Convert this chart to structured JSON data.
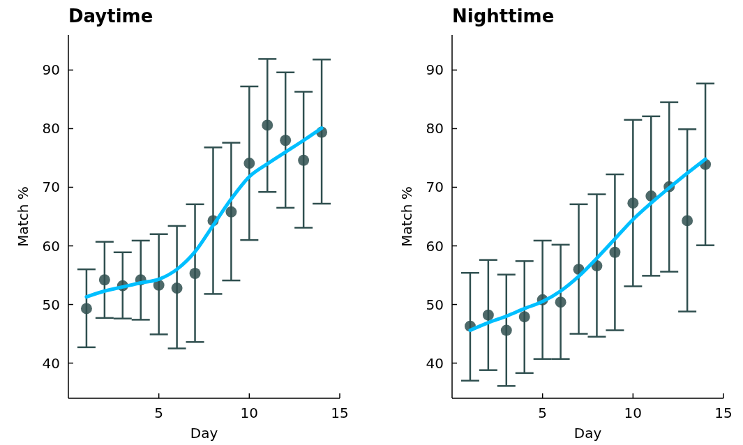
{
  "chart_data": [
    {
      "type": "scatter",
      "title": "Daytime",
      "xlabel": "Day",
      "ylabel": "Match %",
      "x": [
        1,
        2,
        3,
        4,
        5,
        6,
        7,
        8,
        9,
        10,
        11,
        12,
        13,
        14
      ],
      "xlim": [
        0,
        15
      ],
      "xticks": [
        5,
        10,
        15
      ],
      "ylim": [
        34,
        96
      ],
      "yticks": [
        40,
        50,
        60,
        70,
        80,
        90
      ],
      "grid": false,
      "series": [
        {
          "marker": "circle",
          "color": "#2f4f4f",
          "values": [
            49.3,
            54.2,
            53.2,
            54.2,
            53.3,
            52.8,
            55.3,
            64.3,
            65.8,
            74.1,
            80.6,
            78.0,
            74.6,
            79.4
          ],
          "errors": [
            [
              42.7,
              56.0
            ],
            [
              47.7,
              60.7
            ],
            [
              47.6,
              58.9
            ],
            [
              47.4,
              60.9
            ],
            [
              44.9,
              62.0
            ],
            [
              42.5,
              63.4
            ],
            [
              43.6,
              67.1
            ],
            [
              51.8,
              76.8
            ],
            [
              54.1,
              77.6
            ],
            [
              61.0,
              87.2
            ],
            [
              69.2,
              91.9
            ],
            [
              66.5,
              89.6
            ],
            [
              63.1,
              86.3
            ],
            [
              67.2,
              91.8
            ]
          ]
        },
        {
          "type": "line",
          "color": "#00bfff",
          "values": [
            51.3,
            52.3,
            53.0,
            53.7,
            54.3,
            56.0,
            59.0,
            63.5,
            68.0,
            71.8,
            74.0,
            76.0,
            78.0,
            80.1
          ]
        }
      ]
    },
    {
      "type": "scatter",
      "title": "Nighttime",
      "xlabel": "Day",
      "ylabel": "Match %",
      "x": [
        1,
        2,
        3,
        4,
        5,
        6,
        7,
        8,
        9,
        10,
        11,
        12,
        13,
        14
      ],
      "xlim": [
        0,
        15
      ],
      "xticks": [
        5,
        10,
        15
      ],
      "ylim": [
        34,
        96
      ],
      "yticks": [
        40,
        50,
        60,
        70,
        80,
        90
      ],
      "grid": false,
      "series": [
        {
          "marker": "circle",
          "color": "#2f4f4f",
          "values": [
            46.3,
            48.2,
            45.6,
            47.9,
            50.8,
            50.4,
            56.0,
            56.6,
            58.9,
            67.3,
            68.5,
            70.1,
            64.3,
            73.9
          ],
          "errors": [
            [
              37.0,
              55.4
            ],
            [
              38.8,
              57.6
            ],
            [
              36.1,
              55.1
            ],
            [
              38.3,
              57.4
            ],
            [
              40.7,
              60.9
            ],
            [
              40.7,
              60.2
            ],
            [
              45.0,
              67.1
            ],
            [
              44.5,
              68.8
            ],
            [
              45.6,
              72.2
            ],
            [
              53.1,
              81.5
            ],
            [
              54.9,
              82.1
            ],
            [
              55.6,
              84.5
            ],
            [
              48.8,
              79.9
            ],
            [
              60.1,
              87.7
            ]
          ]
        },
        {
          "type": "line",
          "color": "#00bfff",
          "values": [
            45.6,
            46.9,
            48.0,
            49.3,
            50.5,
            52.3,
            54.8,
            57.9,
            61.2,
            64.5,
            67.3,
            69.9,
            72.4,
            74.8
          ]
        }
      ]
    }
  ]
}
